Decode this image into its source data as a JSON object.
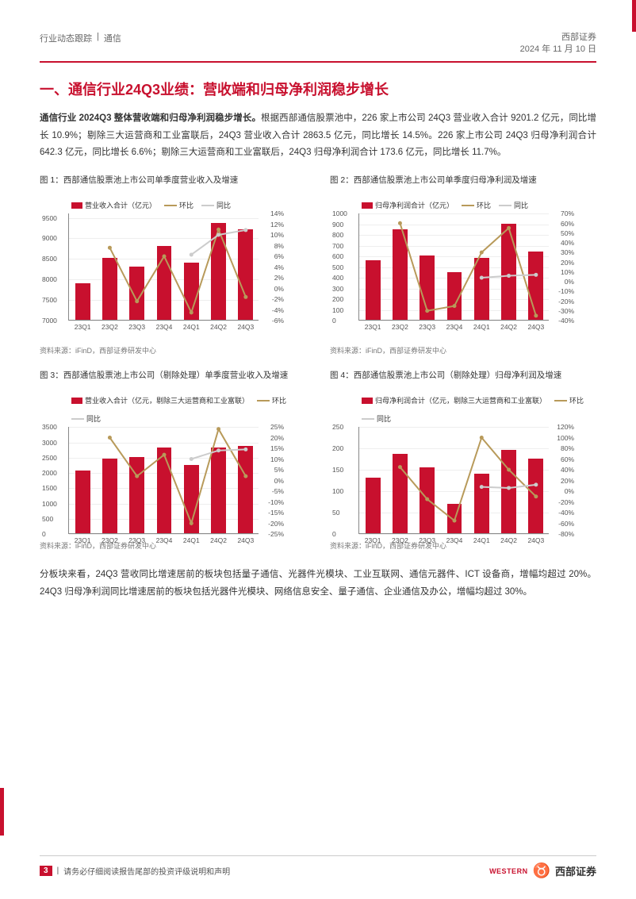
{
  "header": {
    "category": "行业动态跟踪",
    "sep": "|",
    "sector": "通信",
    "company": "西部证券",
    "date": "2024 年 11 月 10 日"
  },
  "section_title": "一、通信行业24Q3业绩：营收端和归母净利润稳步增长",
  "intro_bold": "通信行业 2024Q3 整体营收端和归母净利润稳步增长。",
  "intro_rest": "根据西部通信股票池中，226 家上市公司 24Q3 营业收入合计 9201.2 亿元，同比增长 10.9%；剔除三大运营商和工业富联后，24Q3 营业收入合计 2863.5 亿元，同比增长 14.5%。226 家上市公司 24Q3 归母净利润合计 642.3 亿元，同比增长 6.6%；剔除三大运营商和工业富联后，24Q3 归母净利润合计 173.6 亿元，同比增长 11.7%。",
  "charts": {
    "common": {
      "categories": [
        "23Q1",
        "23Q2",
        "23Q3",
        "23Q4",
        "24Q1",
        "24Q2",
        "24Q3"
      ],
      "bar_color": "#c8102e",
      "qoq_color": "#b89a5a",
      "yoy_color": "#cccccc",
      "grid_color": "#eeeeee",
      "axis_color": "#888888",
      "legend_labels": {
        "qoq": "环比",
        "yoy": "同比"
      }
    },
    "c1": {
      "title": "图 1：西部通信股票池上市公司单季度营业收入及增速",
      "bar_legend": "营业收入合计（亿元）",
      "values": [
        7900,
        8500,
        8300,
        8800,
        8400,
        9350,
        9200
      ],
      "yticks": [
        7000,
        7500,
        8000,
        8500,
        9000,
        9500
      ],
      "ylim": [
        7000,
        9600
      ],
      "qoq": [
        null,
        7.6,
        -2.4,
        6.0,
        -4.5,
        11.0,
        -1.6
      ],
      "yoy": [
        null,
        null,
        null,
        null,
        6.3,
        10.0,
        10.9
      ],
      "r_yticks": [
        -6,
        -4,
        -2,
        0,
        2,
        4,
        6,
        8,
        10,
        12,
        14
      ],
      "r_ylim": [
        -6,
        14
      ],
      "source": "资料来源：iFinD，西部证券研发中心"
    },
    "c2": {
      "title": "图 2：西部通信股票池上市公司单季度归母净利润及增速",
      "bar_legend": "归母净利润合计（亿元）",
      "values": [
        560,
        850,
        600,
        450,
        580,
        900,
        640
      ],
      "yticks": [
        0,
        100,
        200,
        300,
        400,
        500,
        600,
        700,
        800,
        900,
        1000
      ],
      "ylim": [
        0,
        1000
      ],
      "qoq": [
        null,
        60,
        -30,
        -25,
        30,
        55,
        -35
      ],
      "yoy": [
        null,
        null,
        null,
        null,
        4,
        6,
        7
      ],
      "r_yticks": [
        -40,
        -30,
        -20,
        -10,
        0,
        10,
        20,
        30,
        40,
        50,
        60,
        70
      ],
      "r_ylim": [
        -40,
        70
      ],
      "source": "资料来源：iFinD，西部证券研发中心"
    },
    "c3": {
      "title": "图 3：西部通信股票池上市公司（剔除处理）单季度营业收入及增速",
      "bar_legend": "营业收入合计（亿元，剔除三大运营商和工业富联）",
      "values": [
        2050,
        2450,
        2500,
        2800,
        2250,
        2800,
        2860
      ],
      "yticks": [
        0,
        500,
        1000,
        1500,
        2000,
        2500,
        3000,
        3500
      ],
      "ylim": [
        0,
        3500
      ],
      "qoq": [
        null,
        20,
        2,
        12,
        -20,
        24,
        2
      ],
      "yoy": [
        null,
        null,
        null,
        null,
        10,
        14,
        14.5
      ],
      "r_yticks": [
        -25,
        -20,
        -15,
        -10,
        -5,
        0,
        5,
        10,
        15,
        20,
        25
      ],
      "r_ylim": [
        -25,
        25
      ],
      "source": "资料来源：iFinD，西部证券研发中心"
    },
    "c4": {
      "title": "图 4：西部通信股票池上市公司（剔除处理）归母净利润及增速",
      "bar_legend": "归母净利润合计（亿元，剔除三大运营商和工业富联）",
      "values": [
        130,
        185,
        155,
        70,
        140,
        195,
        175
      ],
      "yticks": [
        0,
        50,
        100,
        150,
        200,
        250
      ],
      "ylim": [
        0,
        250
      ],
      "qoq": [
        null,
        45,
        -15,
        -55,
        100,
        40,
        -10
      ],
      "yoy": [
        null,
        null,
        null,
        null,
        8,
        6,
        12
      ],
      "r_yticks": [
        -80,
        -60,
        -40,
        -20,
        0,
        20,
        40,
        60,
        80,
        100,
        120
      ],
      "r_ylim": [
        -80,
        120
      ],
      "source": "资料来源：iFinD，西部证券研发中心"
    }
  },
  "body2": "分板块来看，24Q3 营收同比增速居前的板块包括量子通信、光器件光模块、工业互联网、通信元器件、ICT 设备商，增幅均超过 20%。24Q3 归母净利润同比增速居前的板块包括光器件光模块、网络信息安全、量子通信、企业通信及办公，增幅均超过 30%。",
  "footer": {
    "page": "3",
    "disclaimer_sep": "|",
    "disclaimer": "请务必仔细阅读报告尾部的投资评级说明和声明",
    "logo_brand": "WESTERN",
    "logo_text": "西部证券"
  }
}
